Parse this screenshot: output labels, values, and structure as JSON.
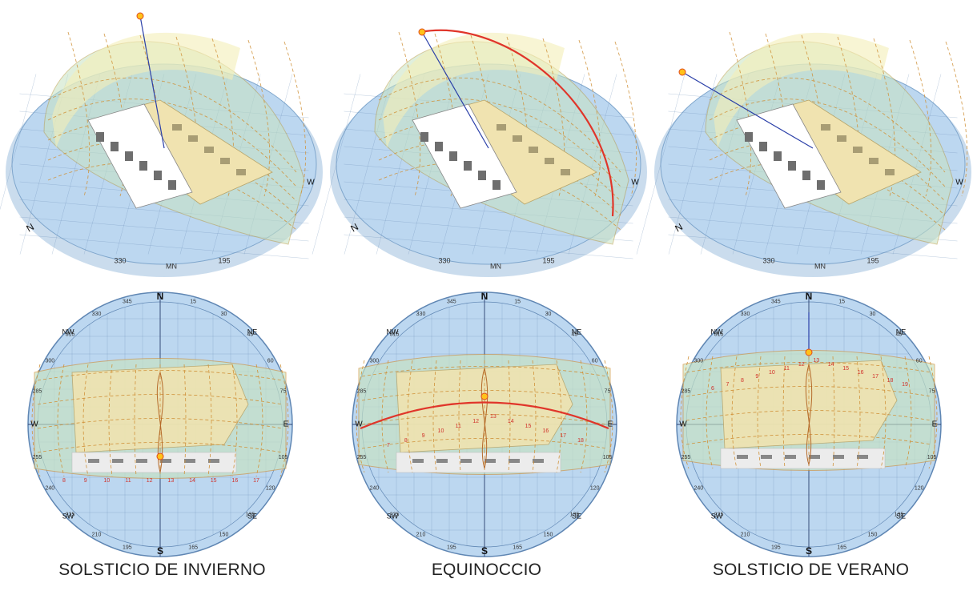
{
  "panels": [
    {
      "caption": "SOLSTICIO DE INVIERNO",
      "sun_altitude_deg": 28,
      "tick_labels": [
        "15",
        "30",
        "45",
        "60",
        "75",
        "105",
        "120",
        "135",
        "150",
        "165",
        "195",
        "210",
        "225",
        "240",
        "255",
        "285",
        "300",
        "315",
        "330",
        "345"
      ],
      "time_labels": [
        "8",
        "9",
        "10",
        "11",
        "12",
        "13",
        "14",
        "15",
        "16",
        "17"
      ]
    },
    {
      "caption": "EQUINOCCIO",
      "sun_altitude_deg": 52,
      "tick_labels": [
        "15",
        "30",
        "45",
        "60",
        "75",
        "105",
        "120",
        "135",
        "150",
        "165",
        "195",
        "210",
        "225",
        "240",
        "255",
        "285",
        "300",
        "315",
        "330",
        "345"
      ],
      "time_labels": [
        "7",
        "8",
        "9",
        "10",
        "11",
        "12",
        "13",
        "14",
        "15",
        "16",
        "17",
        "18"
      ]
    },
    {
      "caption": "SOLSTICIO DE VERANO",
      "sun_altitude_deg": 75,
      "tick_labels": [
        "15",
        "30",
        "45",
        "60",
        "75",
        "105",
        "120",
        "135",
        "150",
        "165",
        "195",
        "210",
        "225",
        "240",
        "255",
        "285",
        "300",
        "315",
        "330",
        "345"
      ],
      "time_labels": [
        "6",
        "7",
        "8",
        "9",
        "10",
        "11",
        "12",
        "13",
        "14",
        "15",
        "16",
        "17",
        "18",
        "19"
      ]
    }
  ],
  "compass": {
    "n": "N",
    "s": "S",
    "e": "E",
    "w": "W",
    "ne": "NE",
    "nw": "NW",
    "se": "SE",
    "sw": "SW"
  },
  "colors": {
    "ground": "#bcd7f0",
    "ground_edge": "#9fbfdf",
    "dome": "#c7e3c2",
    "sun_band": "#f4efb8",
    "sun_path": "#d0923a",
    "equinox_path": "#e0352a",
    "sun": "#ffc21a",
    "grid": "#6c8fb8",
    "building_lit": "#f0e3b0",
    "building_shade": "#6e6e6e",
    "building_top": "#ffffff"
  }
}
